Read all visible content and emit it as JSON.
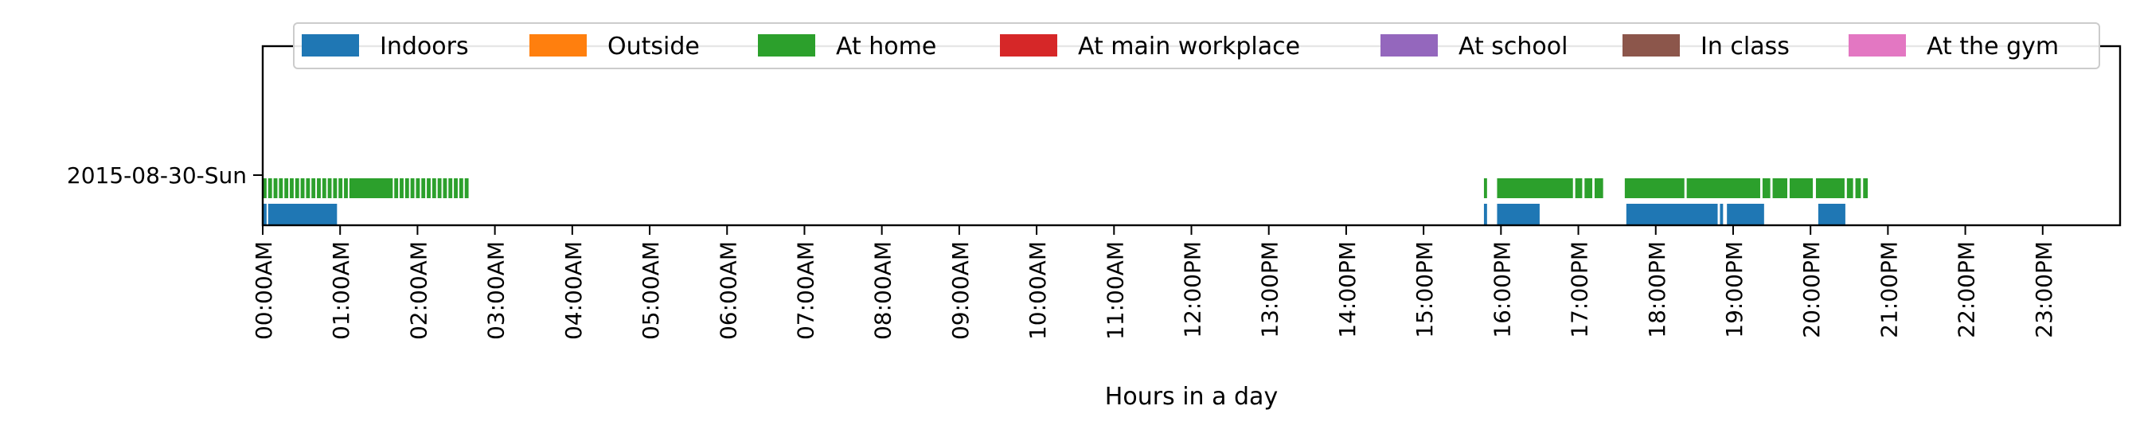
{
  "chart_data": {
    "type": "timeline",
    "title": "",
    "xlabel": "Hours in a day",
    "ylabel": "",
    "xlim": [
      0,
      24
    ],
    "x_tick_labels": [
      "00:00AM",
      "01:00AM",
      "02:00AM",
      "03:00AM",
      "04:00AM",
      "05:00AM",
      "06:00AM",
      "07:00AM",
      "08:00AM",
      "09:00AM",
      "10:00AM",
      "11:00AM",
      "12:00PM",
      "13:00PM",
      "14:00PM",
      "15:00PM",
      "16:00PM",
      "17:00PM",
      "18:00PM",
      "19:00PM",
      "20:00PM",
      "21:00PM",
      "22:00PM",
      "23:00PM"
    ],
    "rows": [
      "2015-08-30-Sun"
    ],
    "legend_position": "top",
    "grid": false,
    "legend": [
      {
        "name": "Indoors",
        "color": "#1f77b4"
      },
      {
        "name": "Outside",
        "color": "#ff7f0e"
      },
      {
        "name": "At home",
        "color": "#2ca02c"
      },
      {
        "name": "At main workplace",
        "color": "#d62728"
      },
      {
        "name": "At school",
        "color": "#9467bd"
      },
      {
        "name": "In class",
        "color": "#8c564b"
      },
      {
        "name": "At the gym",
        "color": "#e377c2"
      }
    ],
    "series": [
      {
        "name": "At home",
        "color": "#2ca02c",
        "row": "2015-08-30-Sun",
        "segments": [
          [
            0.0,
            0.05
          ],
          [
            0.07,
            0.12
          ],
          [
            0.14,
            0.19
          ],
          [
            0.21,
            0.26
          ],
          [
            0.28,
            0.33
          ],
          [
            0.35,
            0.4
          ],
          [
            0.42,
            0.47
          ],
          [
            0.49,
            0.54
          ],
          [
            0.56,
            0.61
          ],
          [
            0.63,
            0.68
          ],
          [
            0.7,
            0.75
          ],
          [
            0.77,
            0.82
          ],
          [
            0.84,
            0.89
          ],
          [
            0.91,
            0.96
          ],
          [
            0.98,
            1.03
          ],
          [
            1.05,
            1.1
          ],
          [
            1.12,
            1.68
          ],
          [
            1.7,
            1.75
          ],
          [
            1.77,
            1.82
          ],
          [
            1.84,
            1.89
          ],
          [
            1.91,
            1.96
          ],
          [
            1.98,
            2.03
          ],
          [
            2.05,
            2.1
          ],
          [
            2.12,
            2.17
          ],
          [
            2.19,
            2.24
          ],
          [
            2.26,
            2.31
          ],
          [
            2.33,
            2.38
          ],
          [
            2.4,
            2.45
          ],
          [
            2.47,
            2.52
          ],
          [
            2.54,
            2.59
          ],
          [
            2.61,
            2.66
          ],
          [
            15.78,
            15.82
          ],
          [
            15.95,
            16.93
          ],
          [
            16.96,
            17.05
          ],
          [
            17.08,
            17.18
          ],
          [
            17.21,
            17.32
          ],
          [
            17.6,
            18.37
          ],
          [
            18.4,
            19.35
          ],
          [
            19.38,
            19.48
          ],
          [
            19.51,
            19.7
          ],
          [
            19.73,
            20.03
          ],
          [
            20.07,
            20.44
          ],
          [
            20.47,
            20.55
          ],
          [
            20.58,
            20.65
          ],
          [
            20.68,
            20.74
          ]
        ]
      },
      {
        "name": "Indoors",
        "color": "#1f77b4",
        "row": "2015-08-30-Sun",
        "segments": [
          [
            0.0,
            0.05
          ],
          [
            0.07,
            0.96
          ],
          [
            15.78,
            15.82
          ],
          [
            15.95,
            16.5
          ],
          [
            17.62,
            18.8
          ],
          [
            18.83,
            18.87
          ],
          [
            18.92,
            19.4
          ],
          [
            20.1,
            20.45
          ]
        ]
      }
    ]
  }
}
